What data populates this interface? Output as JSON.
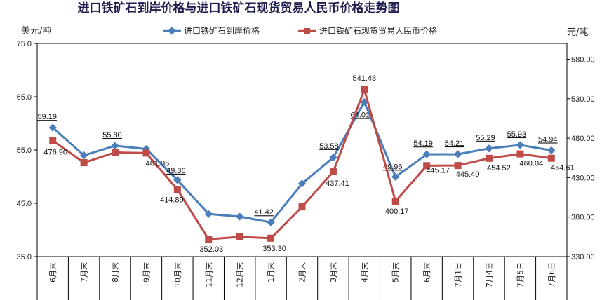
{
  "chart_data": {
    "type": "line",
    "title": "进口铁矿石到岸价格与进口铁矿石现货贸易人民币价格走势图",
    "left_unit": "美元/吨",
    "right_unit": "元/吨",
    "categories": [
      "6月末",
      "7月末",
      "8月末",
      "9月末",
      "10月末",
      "11月末",
      "12月末",
      "1月末",
      "2月末",
      "3月末",
      "4月末",
      "5月末",
      "6月末",
      "7月1日",
      "7月4日",
      "7月5日",
      "7月6日"
    ],
    "left_axis": {
      "range": [
        35.0,
        75.0
      ],
      "ticks": [
        "35.0",
        "45.0",
        "55.0",
        "65.0",
        "75.0"
      ],
      "tick_values": [
        35,
        45,
        55,
        65,
        75
      ]
    },
    "right_axis": {
      "range": [
        330,
        600
      ],
      "ticks": [
        "330.00",
        "380.00",
        "430.00",
        "480.00",
        "530.00",
        "580.00"
      ],
      "tick_values": [
        330,
        380,
        430,
        480,
        530,
        580
      ]
    },
    "legend_position": "top",
    "series": [
      {
        "name": "进口铁矿石到岸价格",
        "axis": "left",
        "color": "#4a7ebb",
        "marker": "diamond",
        "values": [
          59.19,
          54.0,
          55.8,
          55.2,
          49.36,
          43.0,
          42.5,
          41.42,
          48.7,
          53.58,
          64.01,
          49.96,
          54.19,
          54.21,
          55.29,
          55.93,
          54.94
        ],
        "labels": [
          "59.19",
          "",
          "55.80",
          "",
          "49.36",
          "",
          "",
          "41.42",
          "",
          "53.58",
          "64.01",
          "49.96",
          "54.19",
          "54.21",
          "55.29",
          "55.93",
          "54.94"
        ]
      },
      {
        "name": "进口铁矿石现货贸易人民币价格",
        "axis": "right",
        "color": "#be4b48",
        "marker": "square",
        "values": [
          476.9,
          449.0,
          461.9,
          461.06,
          414.89,
          352.03,
          355.0,
          353.3,
          393.0,
          437.41,
          541.48,
          400.17,
          445.17,
          445.4,
          454.52,
          460.04,
          454.61
        ],
        "labels": [
          "476.90",
          "",
          "",
          "461.06",
          "414.89",
          "352.03",
          "",
          "353.30",
          "",
          "437.41",
          "541.48",
          "400.17",
          "445.17",
          "445.40",
          "454.52",
          "460.04",
          "454.61"
        ]
      }
    ]
  }
}
